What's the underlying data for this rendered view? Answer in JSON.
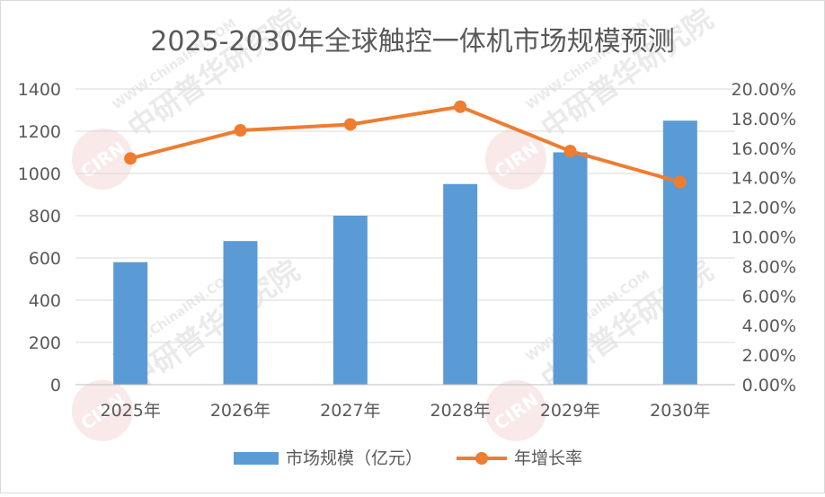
{
  "chart_data": {
    "type": "bar+line",
    "title": "2025-2030年全球触控一体机市场规模预测",
    "categories": [
      "2025年",
      "2026年",
      "2027年",
      "2028年",
      "2029年",
      "2030年"
    ],
    "series": [
      {
        "name": "市场规模（亿元）",
        "type": "bar",
        "axis": "left",
        "color": "#5b9bd5",
        "values": [
          580,
          680,
          800,
          950,
          1100,
          1250
        ]
      },
      {
        "name": "年增长率",
        "type": "line",
        "axis": "right",
        "color": "#ed7d31",
        "values": [
          15.3,
          17.2,
          17.6,
          18.8,
          15.8,
          13.7
        ]
      }
    ],
    "y_left": {
      "min": 0,
      "max": 1400,
      "step": 200,
      "ticks": [
        "0",
        "200",
        "400",
        "600",
        "800",
        "1000",
        "1200",
        "1400"
      ]
    },
    "y_right": {
      "min": 0,
      "max": 20,
      "step": 2,
      "ticks": [
        "0.00%",
        "2.00%",
        "4.00%",
        "6.00%",
        "8.00%",
        "10.00%",
        "12.00%",
        "14.00%",
        "16.00%",
        "18.00%",
        "20.00%"
      ]
    },
    "grid": true,
    "legend": "bottom"
  },
  "watermark": {
    "text": "中研普华研究院",
    "url": "WWW.ChinaIRN.COM",
    "logo": "CIRN",
    "color": "#d9d9d9"
  }
}
